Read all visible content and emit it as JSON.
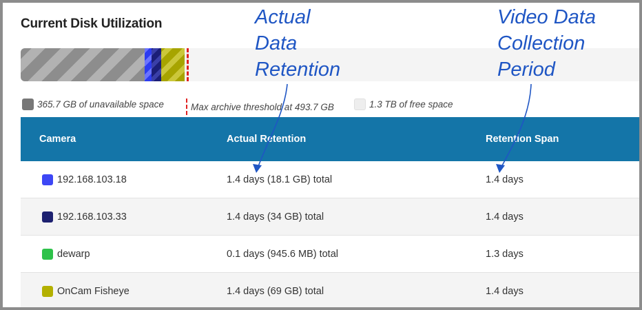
{
  "title": "Current Disk Utilization",
  "colors": {
    "header_bg": "#1475a8",
    "unavailable": "#8d8d8d",
    "threshold": "#e02020",
    "annotation": "#1f56c4"
  },
  "legend": {
    "unavailable": "365.7 GB of unavailable space",
    "threshold": "Max archive threshold at 493.7 GB",
    "free": "1.3 TB of free space"
  },
  "table": {
    "headers": {
      "camera": "Camera",
      "actual_retention": "Actual Retention",
      "retention_span": "Retention Span"
    },
    "rows": [
      {
        "camera": "192.168.103.18",
        "color": "#3d47f5",
        "actual": "1.4 days (18.1 GB) total",
        "span": "1.4 days"
      },
      {
        "camera": "192.168.103.33",
        "color": "#1d2170",
        "actual": "1.4 days (34 GB) total",
        "span": "1.4 days"
      },
      {
        "camera": "dewarp",
        "color": "#2ec24a",
        "actual": "0.1 days (945.6 MB) total",
        "span": "1.3 days"
      },
      {
        "camera": "OnCam Fisheye",
        "color": "#b3b000",
        "actual": "1.4 days (69 GB) total",
        "span": "1.4 days"
      }
    ]
  },
  "annotations": {
    "actual_data_retention": [
      "Actual",
      "Data",
      "Retention"
    ],
    "video_data_collection_period": [
      "Video Data",
      "Collection",
      "Period"
    ]
  }
}
